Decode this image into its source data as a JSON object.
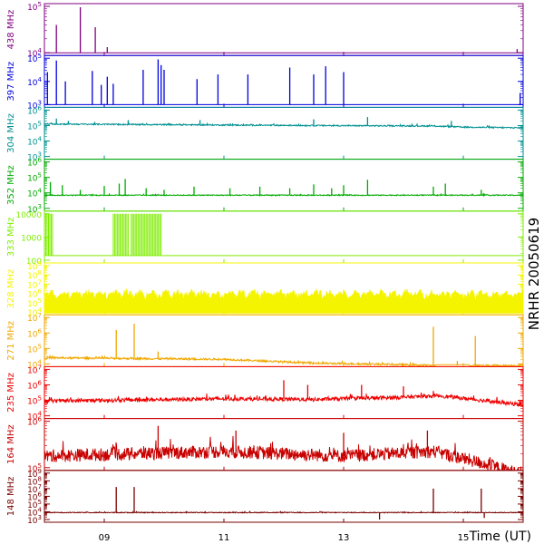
{
  "chart_data": [
    {
      "type": "line",
      "channel": "438 MHz",
      "color": "#800080",
      "yscale": "log",
      "yticks": [
        "10^4",
        "10^5"
      ],
      "baseline_exp": 4.0,
      "noise": 0.0,
      "spikes": [
        [
          8.2,
          4.6
        ],
        [
          8.6,
          4.98
        ],
        [
          8.85,
          4.55
        ],
        [
          9.05,
          4.12
        ],
        [
          15.9,
          4.08
        ]
      ]
    },
    {
      "type": "line",
      "channel": "397 MHz",
      "color": "#0000dd",
      "yscale": "log",
      "yticks": [
        "10^3",
        "10^4",
        "10^5"
      ],
      "baseline_exp": 3.0,
      "noise": 0.0,
      "spikes": [
        [
          8.05,
          4.4
        ],
        [
          8.2,
          4.9
        ],
        [
          8.35,
          4.0
        ],
        [
          8.8,
          4.45
        ],
        [
          8.95,
          3.85
        ],
        [
          9.05,
          4.2
        ],
        [
          9.15,
          3.9
        ],
        [
          9.65,
          4.5
        ],
        [
          9.9,
          4.95
        ],
        [
          9.95,
          4.7
        ],
        [
          10.0,
          4.5
        ],
        [
          10.55,
          4.1
        ],
        [
          10.9,
          4.3
        ],
        [
          11.4,
          4.3
        ],
        [
          12.1,
          4.6
        ],
        [
          12.5,
          4.3
        ],
        [
          12.7,
          4.65
        ],
        [
          13.0,
          4.4
        ],
        [
          15.95,
          3.5
        ]
      ]
    },
    {
      "type": "line",
      "channel": "304 MHz",
      "color": "#009090",
      "yscale": "log",
      "yticks": [
        "10^3",
        "10^4",
        "10^5",
        "10^6"
      ],
      "baseline_exp": 5.05,
      "noise": 0.04,
      "trend": [
        [
          8.0,
          5.1
        ],
        [
          12.5,
          5.0
        ],
        [
          14.5,
          4.97
        ],
        [
          15.0,
          4.9
        ],
        [
          16.0,
          4.85
        ]
      ],
      "spikes": [
        [
          8.2,
          5.45
        ],
        [
          8.4,
          5.3
        ],
        [
          9.4,
          5.35
        ],
        [
          10.6,
          5.35
        ],
        [
          12.5,
          5.4
        ],
        [
          13.4,
          5.55
        ],
        [
          14.8,
          5.3
        ]
      ]
    },
    {
      "type": "line",
      "channel": "352 MHz",
      "color": "#00aa00",
      "yscale": "log",
      "yticks": [
        "10^3",
        "10^4",
        "10^5",
        "10^6"
      ],
      "baseline_exp": 3.85,
      "noise": 0.03,
      "spikes": [
        [
          8.1,
          4.7
        ],
        [
          8.3,
          4.5
        ],
        [
          8.6,
          4.2
        ],
        [
          9.0,
          4.45
        ],
        [
          9.25,
          4.6
        ],
        [
          9.35,
          4.9
        ],
        [
          9.7,
          4.3
        ],
        [
          10.0,
          4.2
        ],
        [
          10.5,
          4.4
        ],
        [
          11.1,
          4.3
        ],
        [
          11.6,
          4.4
        ],
        [
          12.1,
          4.3
        ],
        [
          12.5,
          4.55
        ],
        [
          12.8,
          4.3
        ],
        [
          13.0,
          4.5
        ],
        [
          13.4,
          4.85
        ],
        [
          14.5,
          4.4
        ],
        [
          14.7,
          4.6
        ],
        [
          15.3,
          4.2
        ]
      ]
    },
    {
      "type": "line",
      "channel": "333 MHz",
      "color": "#7fee00",
      "yscale": "log",
      "yticks": [
        "100",
        "1000",
        "10000"
      ],
      "baseline_exp": 2.2,
      "noise": 0.0,
      "blocks": [
        [
          8.0,
          8.15
        ],
        [
          9.15,
          9.4
        ],
        [
          9.45,
          9.95
        ]
      ],
      "block_top_exp": 4.0
    },
    {
      "type": "area",
      "channel": "328 MHz",
      "color": "#f4f400",
      "yscale": "log",
      "yticks": [
        "10^4",
        "10^5",
        "10^6",
        "10^7",
        "10^8",
        "10^9"
      ],
      "baseline_exp": 4.0,
      "level_exp": 5.6,
      "noise": 0.9
    },
    {
      "type": "line",
      "channel": "271 MHz",
      "color": "#f0a800",
      "yscale": "log",
      "yticks": [
        "10^4",
        "10^5",
        "10^6",
        "10^7"
      ],
      "baseline_exp": 4.4,
      "noise": 0.06,
      "trend": [
        [
          8.0,
          4.4
        ],
        [
          11.0,
          4.3
        ],
        [
          12.5,
          4.05
        ],
        [
          14.0,
          3.95
        ],
        [
          14.5,
          3.9
        ],
        [
          16.0,
          3.9
        ]
      ],
      "spikes": [
        [
          9.2,
          6.2
        ],
        [
          9.5,
          6.6
        ],
        [
          9.9,
          4.8
        ],
        [
          14.5,
          6.4
        ],
        [
          15.2,
          5.8
        ],
        [
          14.9,
          4.2
        ]
      ],
      "gap": [
        14.55,
        15.1
      ]
    },
    {
      "type": "line",
      "channel": "235 MHz",
      "color": "#ee0000",
      "yscale": "log",
      "yticks": [
        "10^4",
        "10^5",
        "10^6",
        "10^7"
      ],
      "baseline_exp": 4.95,
      "noise": 0.12,
      "trend": [
        [
          8.0,
          4.95
        ],
        [
          11.0,
          5.1
        ],
        [
          12.5,
          5.05
        ],
        [
          14.0,
          5.2
        ],
        [
          14.6,
          5.3
        ],
        [
          15.3,
          5.0
        ],
        [
          16.0,
          4.7
        ]
      ],
      "spikes": [
        [
          12.0,
          6.3
        ],
        [
          12.4,
          6.0
        ],
        [
          13.3,
          6.0
        ],
        [
          14.0,
          5.9
        ],
        [
          14.5,
          5.6
        ]
      ]
    },
    {
      "type": "line",
      "channel": "164 MHz",
      "color": "#c80000",
      "yscale": "log",
      "yticks": [
        "10^5",
        "10^6"
      ],
      "baseline_exp": 5.25,
      "noise": 0.14,
      "trend": [
        [
          8.0,
          5.25
        ],
        [
          11.0,
          5.35
        ],
        [
          13.0,
          5.25
        ],
        [
          14.5,
          5.35
        ],
        [
          15.3,
          5.1
        ],
        [
          16.0,
          4.85
        ]
      ],
      "spikes": [
        [
          9.9,
          5.9
        ],
        [
          11.2,
          5.8
        ],
        [
          13.0,
          5.75
        ],
        [
          14.4,
          5.8
        ]
      ]
    },
    {
      "type": "line",
      "channel": "148 MHz",
      "color": "#7a0000",
      "yscale": "log",
      "yticks": [
        "10^3",
        "10^4",
        "10^5",
        "10^6",
        "10^7",
        "10^8",
        "10^9"
      ],
      "baseline_exp": 3.9,
      "noise": 0.05,
      "spikes": [
        [
          9.2,
          7.2
        ],
        [
          9.5,
          7.2
        ],
        [
          13.6,
          3.0
        ],
        [
          14.5,
          7.0
        ],
        [
          15.3,
          7.0
        ],
        [
          15.35,
          3.2
        ]
      ]
    }
  ],
  "x_axis": {
    "label": "Time (UT)",
    "ticks": [
      "09",
      "11",
      "13",
      "15"
    ],
    "tick_values": [
      9,
      11,
      13,
      15
    ],
    "range": [
      8.0,
      16.0
    ]
  },
  "side_title": "NRHR 20050619"
}
